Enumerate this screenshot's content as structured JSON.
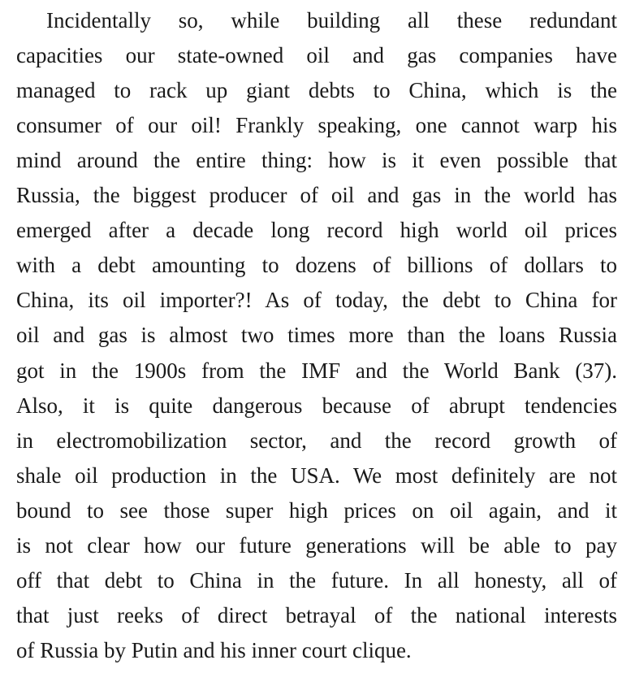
{
  "paragraph": {
    "lines": [
      "Incidentally so, while building all these redundant",
      "capacities our state-owned oil and gas companies have",
      "managed to rack up giant debts to China, which is the",
      "consumer of our oil! Frankly speaking, one cannot warp his",
      "mind around the entire thing: how is it even possible that",
      "Russia, the biggest producer of oil and gas in the world has",
      "emerged after a decade long record high world oil prices",
      "with a debt amounting to dozens of billions of dollars to",
      "China, its oil importer?! As of today, the debt to China for",
      "oil and gas is almost two times more than the loans Russia",
      "got in the 1900s from the IMF and the World Bank (37).",
      "Also, it is quite dangerous because of abrupt tendencies",
      "in electromobilization sector, and the record growth of",
      "shale oil production in the USA. We most definitely are not",
      "bound to see those super high prices on oil again, and it",
      "is not clear how our future generations will be able to pay",
      "off that debt to China in the future. In all honesty, all of",
      "that just reeks of direct betrayal of the national interests",
      "of Russia by Putin and his inner court clique."
    ]
  }
}
